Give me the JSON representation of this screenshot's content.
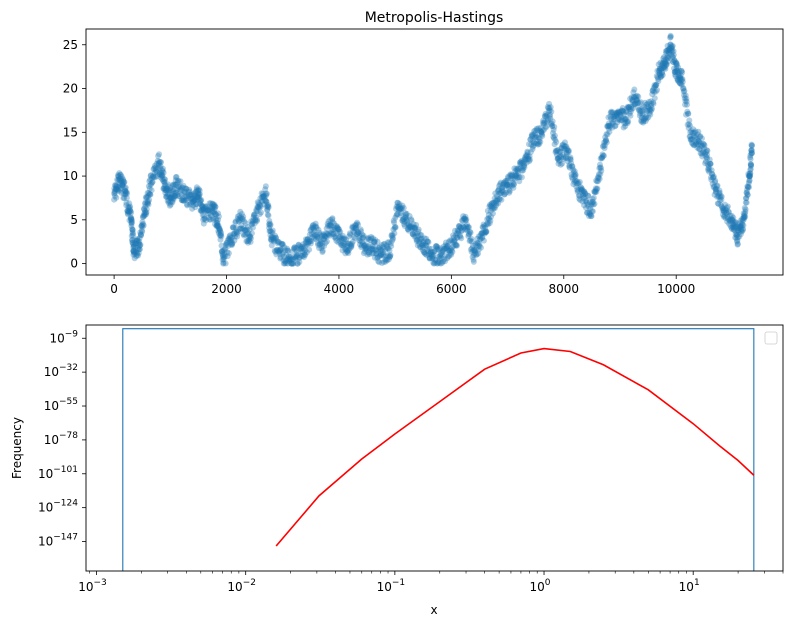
{
  "chart_data": [
    {
      "type": "scatter",
      "title": "Metropolis-Hastings",
      "xlabel": "",
      "ylabel": "",
      "xlim": [
        -500,
        11900
      ],
      "ylim": [
        -1.3,
        26.8
      ],
      "xticks": [
        0,
        2000,
        4000,
        6000,
        8000,
        10000
      ],
      "xtick_labels": [
        "0",
        "2000",
        "4000",
        "6000",
        "8000",
        "10000"
      ],
      "yticks": [
        0,
        5,
        10,
        15,
        20,
        25
      ],
      "ytick_labels": [
        "0",
        "5",
        "10",
        "15",
        "20",
        "25"
      ],
      "grid": false,
      "marker_color": "#1f77b4",
      "marker_alpha": 0.35,
      "series": [
        {
          "x": [
            0,
            100,
            200,
            300,
            350,
            450,
            550,
            650,
            800,
            900,
            1000,
            1100,
            1250,
            1400,
            1500,
            1600,
            1750,
            1850,
            1950,
            2100,
            2250,
            2400,
            2550,
            2700,
            2800,
            2950,
            3100,
            3250,
            3400,
            3550,
            3700,
            3850,
            4000,
            4150,
            4300,
            4450,
            4600,
            4750,
            4900,
            5050,
            5200,
            5350,
            5500,
            5650,
            5800,
            5950,
            6100,
            6250,
            6400,
            6550,
            6700,
            6850,
            7000,
            7150,
            7300,
            7450,
            7600,
            7750,
            7900,
            8050,
            8200,
            8350,
            8500,
            8650,
            8800,
            8950,
            9100,
            9250,
            9400,
            9550,
            9700,
            9800,
            9900,
            10000,
            10100,
            10250,
            10400,
            10550,
            10700,
            10850,
            11000,
            11100,
            11200,
            11300,
            11350
          ],
          "y": [
            8,
            9.5,
            8,
            5,
            1.5,
            2,
            6,
            9,
            11.5,
            9,
            7.5,
            9,
            8,
            7,
            8,
            5.5,
            6,
            5,
            0.5,
            3,
            5,
            3,
            6,
            8,
            3,
            1.5,
            0.5,
            1,
            1.5,
            4,
            2,
            4.5,
            3,
            2,
            4,
            2,
            2,
            1,
            1.5,
            6.5,
            5,
            3.5,
            2.5,
            1,
            1,
            1.5,
            3,
            5,
            1,
            3,
            6,
            8,
            9,
            10,
            11,
            14,
            15,
            17.5,
            12,
            13,
            9.5,
            7.5,
            6,
            11,
            16,
            17,
            16.5,
            19,
            17,
            18,
            22,
            23,
            25,
            22,
            21,
            15,
            14,
            12,
            8.5,
            6,
            5,
            3,
            5,
            10,
            13.5
          ]
        }
      ]
    },
    {
      "type": "histogram",
      "title": "",
      "xlabel": "x",
      "ylabel": "Frequency",
      "xscale": "log",
      "yscale": "log",
      "xlim": [
        0.00085,
        40
      ],
      "ylim_exp": [
        -167,
        0
      ],
      "xticks_exp": [
        -3,
        -2,
        -1,
        0,
        1
      ],
      "xtick_base": "10",
      "yticks_exp": [
        -9,
        -32,
        -55,
        -78,
        -101,
        -124,
        -147
      ],
      "ytick_base": "10",
      "legend": "top-right (empty)",
      "grid": false,
      "histogram": {
        "color": "#1f77b4",
        "x_start": 0.0015,
        "x_end": 25.5,
        "level_exp": -2.5
      },
      "curve": {
        "color": "#ff0000",
        "x": [
          0.016,
          0.031,
          0.06,
          0.1,
          0.2,
          0.4,
          0.7,
          1.0,
          1.5,
          2.5,
          5,
          10,
          15,
          20,
          25.5
        ],
        "y_exp": [
          -150,
          -116,
          -91,
          -74,
          -52,
          -30,
          -19,
          -16,
          -18,
          -27,
          -44,
          -67,
          -82,
          -92,
          -102
        ]
      }
    }
  ]
}
